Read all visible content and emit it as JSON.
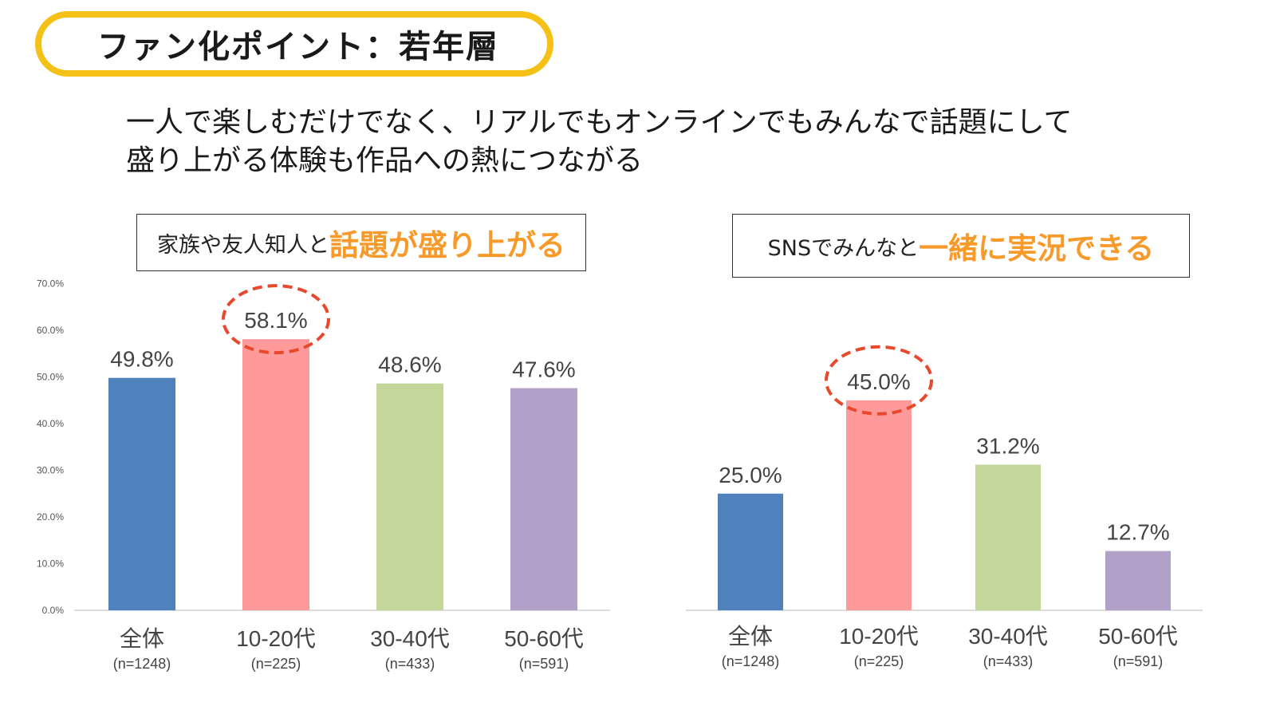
{
  "page": {
    "title": "ファン化ポイント：若年層",
    "subtitle_lines": [
      "一人で楽しむだけでなく、リアルでもオンラインでもみんなで話題にして",
      "盛り上がる体験も作品への熱につながる"
    ]
  },
  "chart_data": [
    {
      "type": "bar",
      "title_plain": "家族や友人知人と",
      "title_highlight": "話題が盛り上がる",
      "categories": [
        "全体",
        "10-20代",
        "30-40代",
        "50-60代"
      ],
      "sample_sizes": [
        "(n=1248)",
        "(n=225)",
        "(n=433)",
        "(n=591)"
      ],
      "values": [
        49.8,
        58.1,
        48.6,
        47.6
      ],
      "value_labels": [
        "49.8%",
        "58.1%",
        "48.6%",
        "47.6%"
      ],
      "ylim": [
        0,
        70
      ],
      "yticks": [
        "0.0%",
        "10.0%",
        "20.0%",
        "30.0%",
        "40.0%",
        "50.0%",
        "60.0%",
        "70.0%"
      ],
      "bar_colors": [
        "#4f81bd",
        "#ff9a9a",
        "#c4d79b",
        "#b1a0c7"
      ],
      "highlight_index": 1,
      "highlight_color": "#e8492c"
    },
    {
      "type": "bar",
      "title_plain": "SNSでみんなと",
      "title_highlight": "一緒に実況できる",
      "categories": [
        "全体",
        "10-20代",
        "30-40代",
        "50-60代"
      ],
      "sample_sizes": [
        "(n=1248)",
        "(n=225)",
        "(n=433)",
        "(n=591)"
      ],
      "values": [
        25.0,
        45.0,
        31.2,
        12.7
      ],
      "value_labels": [
        "25.0%",
        "45.0%",
        "31.2%",
        "12.7%"
      ],
      "ylim": [
        0,
        70
      ],
      "bar_colors": [
        "#4f81bd",
        "#ff9a9a",
        "#c4d79b",
        "#b1a0c7"
      ],
      "highlight_index": 1,
      "highlight_color": "#e8492c"
    }
  ]
}
